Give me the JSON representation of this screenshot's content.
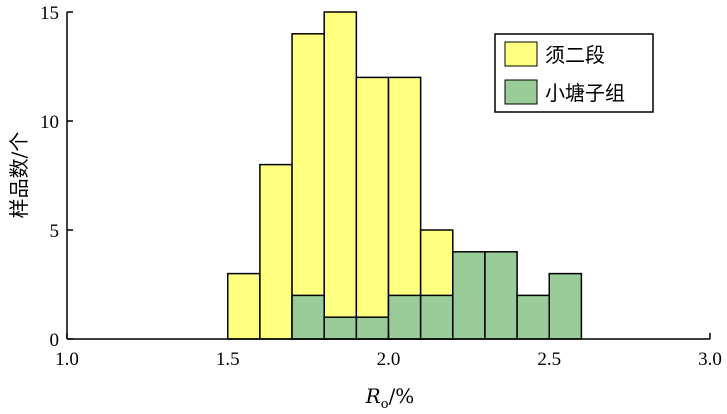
{
  "chart_data": {
    "type": "bar",
    "title": "",
    "xlabel": {
      "main": "R",
      "subscript": "o",
      "suffix": "/%"
    },
    "ylabel": "样品数/个",
    "xlim": [
      1.0,
      3.0
    ],
    "ylim": [
      0,
      15
    ],
    "x_ticks": [
      "1.0",
      "1.5",
      "2.0",
      "2.5",
      "3.0"
    ],
    "y_ticks": [
      "0",
      "5",
      "10",
      "15"
    ],
    "bin_width": 0.1,
    "grid": false,
    "legend_position": "top-right",
    "series": [
      {
        "name": "须二段",
        "color": "#ffff80",
        "bins": [
          {
            "start": 1.5,
            "value": 3
          },
          {
            "start": 1.6,
            "value": 8
          },
          {
            "start": 1.7,
            "value": 14
          },
          {
            "start": 1.8,
            "value": 15
          },
          {
            "start": 1.9,
            "value": 12
          },
          {
            "start": 2.0,
            "value": 12
          },
          {
            "start": 2.1,
            "value": 5
          }
        ]
      },
      {
        "name": "小塘子组",
        "color": "#99cc99",
        "bins": [
          {
            "start": 1.7,
            "value": 2
          },
          {
            "start": 1.8,
            "value": 1
          },
          {
            "start": 1.9,
            "value": 1
          },
          {
            "start": 2.0,
            "value": 2
          },
          {
            "start": 2.1,
            "value": 2
          },
          {
            "start": 2.2,
            "value": 4
          },
          {
            "start": 2.3,
            "value": 4
          },
          {
            "start": 2.4,
            "value": 2
          },
          {
            "start": 2.5,
            "value": 3
          }
        ]
      }
    ]
  }
}
